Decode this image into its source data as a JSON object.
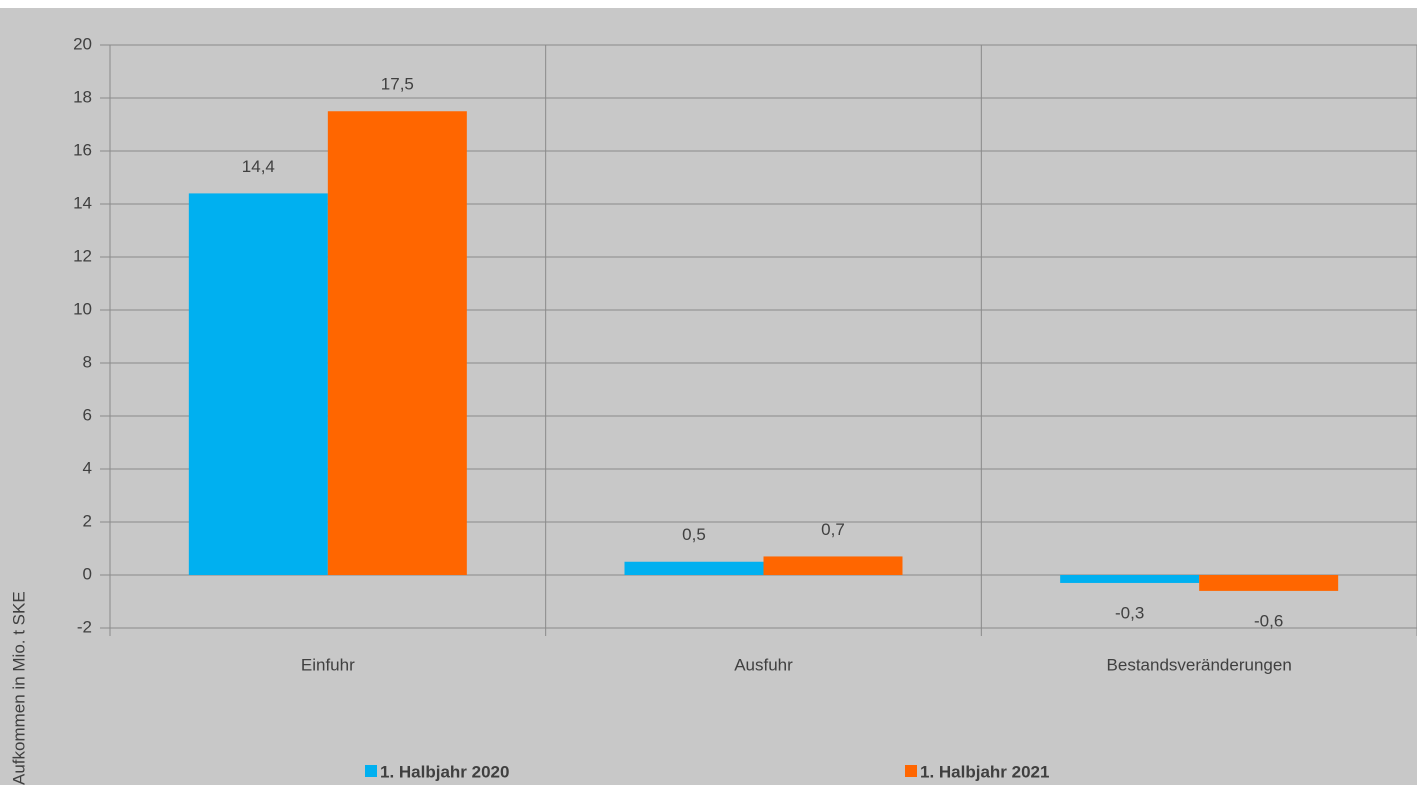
{
  "chart_data": {
    "type": "bar",
    "y_label": "Aufkommen  in Mio. t SKE",
    "categories": [
      "Einfuhr",
      "Ausfuhr",
      "Bestandsveränderungen"
    ],
    "series": [
      {
        "name": "1. Halbjahr 2020",
        "color": "#00b0f0",
        "values": [
          14.4,
          0.5,
          -0.3
        ],
        "value_labels": [
          "14,4",
          "0,5",
          "-0,3"
        ]
      },
      {
        "name": "1. Halbjahr 2021",
        "color": "#ff6600",
        "values": [
          17.5,
          0.7,
          -0.6
        ],
        "value_labels": [
          "17,5",
          "0,7",
          "-0,6"
        ]
      }
    ],
    "ylim": [
      -2,
      20
    ],
    "yticks": [
      -2,
      0,
      2,
      4,
      6,
      8,
      10,
      12,
      14,
      16,
      18,
      20
    ],
    "grid": true,
    "legend": "bottom"
  }
}
